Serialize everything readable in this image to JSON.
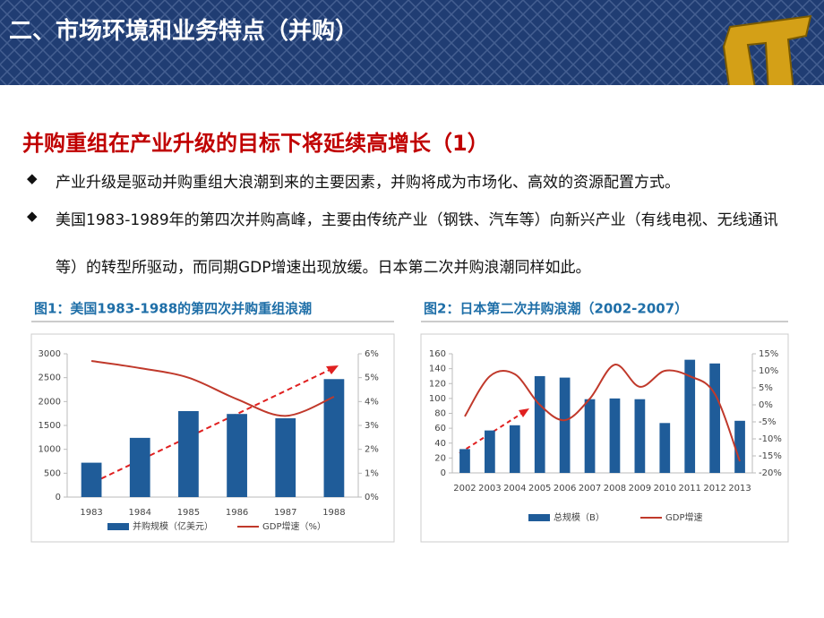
{
  "header": {
    "title": "二、市场环境和业务特点（并购）"
  },
  "headline": "并购重组在产业升级的目标下将延续高增长（1）",
  "bullets": [
    "产业升级是驱动并购重组大浪潮到来的主要因素，并购将成为市场化、高效的资源配置方式。",
    "美国1983-1989年的第四次并购高峰，主要由传统产业（钢铁、汽车等）向新兴产业（有线电视、无线通讯等）的转型所驱动，而同期GDP增速出现放缓。日本第二次并购浪潮同样如此。"
  ],
  "chart_data": [
    {
      "type": "bar",
      "title": "图1：美国1983-1988的第四次并购重组浪潮",
      "categories": [
        "1983",
        "1984",
        "1985",
        "1986",
        "1987",
        "1988"
      ],
      "series": [
        {
          "name": "并购规模（亿美元）",
          "type": "bar",
          "color": "#1f5c99",
          "values": [
            720,
            1240,
            1800,
            1740,
            1650,
            2470
          ]
        },
        {
          "name": "GDP增速（%）",
          "type": "line",
          "axis": "y2",
          "color": "#c0392b",
          "values": [
            5.7,
            5.4,
            5.0,
            4.1,
            3.4,
            4.2
          ]
        }
      ],
      "ylim": [
        0,
        3000
      ],
      "yticks": [
        0,
        500,
        1000,
        1500,
        2000,
        2500,
        3000
      ],
      "y2lim": [
        0,
        6
      ],
      "y2ticks": [
        {
          "value": 0,
          "label": "0%"
        },
        {
          "value": 1,
          "label": "1%"
        },
        {
          "value": 2,
          "label": "2%"
        },
        {
          "value": 3,
          "label": "3%"
        },
        {
          "value": 4,
          "label": "4%"
        },
        {
          "value": 5,
          "label": "5%"
        },
        {
          "value": 6,
          "label": "6%"
        }
      ]
    },
    {
      "type": "bar",
      "title": "图2：日本第二次并购浪潮（2002-2007）",
      "categories": [
        "2002",
        "2003",
        "2004",
        "2005",
        "2006",
        "2007",
        "2008",
        "2009",
        "2010",
        "2011",
        "2012",
        "2013"
      ],
      "series": [
        {
          "name": "总规模（B）",
          "type": "bar",
          "color": "#1f5c99",
          "values": [
            32,
            57,
            64,
            130,
            128,
            99,
            100,
            99,
            67,
            152,
            147,
            70
          ]
        },
        {
          "name": "GDP增速",
          "type": "line",
          "axis": "y2",
          "color": "#c0392b",
          "values": [
            -3.4,
            8.4,
            9,
            0,
            -4.5,
            1.8,
            11.8,
            5.3,
            10,
            8.4,
            3.2,
            -16.6
          ]
        }
      ],
      "ylim": [
        0,
        160
      ],
      "yticks": [
        0,
        20,
        40,
        60,
        80,
        100,
        120,
        140,
        160
      ],
      "y2lim": [
        -20,
        15
      ],
      "y2ticks": [
        {
          "value": -20,
          "label": "-20%"
        },
        {
          "value": -15,
          "label": "-15%"
        },
        {
          "value": -10,
          "label": "-10%"
        },
        {
          "value": -5,
          "label": "-5%"
        },
        {
          "value": 0,
          "label": "0%"
        },
        {
          "value": 5,
          "label": "5%"
        },
        {
          "value": 10,
          "label": "10%"
        },
        {
          "value": 15,
          "label": "15%"
        }
      ]
    }
  ]
}
